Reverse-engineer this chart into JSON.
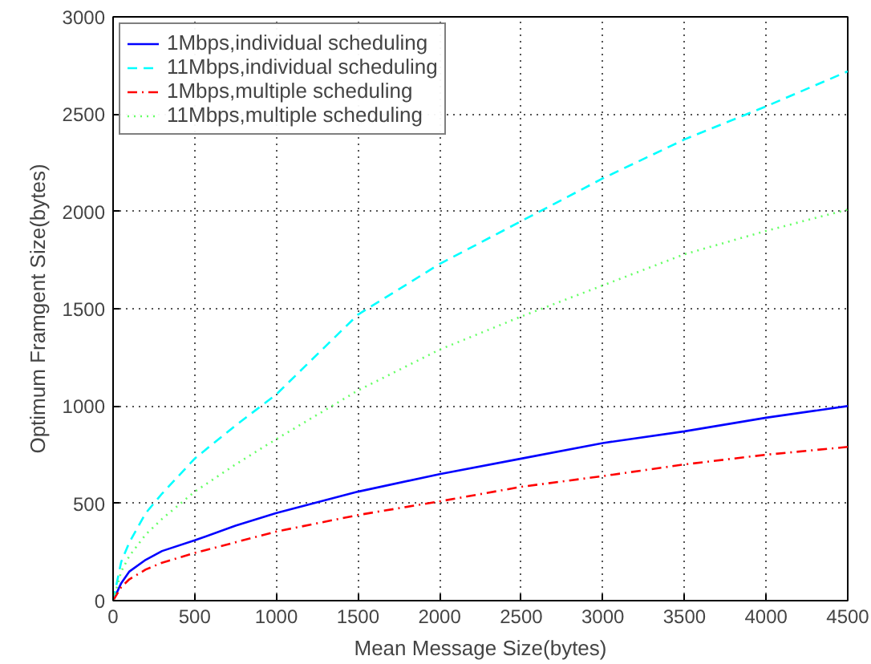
{
  "chart_data": {
    "type": "line",
    "xlabel": "Mean Message Size(bytes)",
    "ylabel": "Optimum Framgent Size(bytes)",
    "x": [
      0,
      50,
      100,
      200,
      300,
      500,
      750,
      1000,
      1500,
      2000,
      2500,
      3000,
      3500,
      4000,
      4500
    ],
    "series": [
      {
        "name": "1Mbps,individual scheduling",
        "color": "#0000ff",
        "line_style": "solid",
        "values": [
          0,
          90,
          150,
          210,
          255,
          310,
          385,
          450,
          560,
          650,
          730,
          810,
          870,
          940,
          1000
        ]
      },
      {
        "name": "11Mbps,individual scheduling",
        "color": "#00ffff",
        "line_style": "dashed",
        "values": [
          0,
          200,
          300,
          450,
          550,
          730,
          900,
          1060,
          1470,
          1730,
          1950,
          2170,
          2370,
          2540,
          2720
        ]
      },
      {
        "name": "1Mbps,multiple scheduling",
        "color": "#ff0000",
        "line_style": "dashdot",
        "values": [
          0,
          70,
          110,
          160,
          195,
          245,
          300,
          355,
          440,
          510,
          585,
          640,
          700,
          750,
          790
        ]
      },
      {
        "name": "11Mbps,multiple scheduling",
        "color": "#66ff66",
        "line_style": "dotted",
        "values": [
          0,
          150,
          230,
          340,
          420,
          560,
          700,
          830,
          1080,
          1290,
          1460,
          1620,
          1780,
          1900,
          2010
        ]
      }
    ],
    "xlim": [
      0,
      4500
    ],
    "ylim": [
      0,
      3000
    ],
    "xticks": [
      0,
      500,
      1000,
      1500,
      2000,
      2500,
      3000,
      3500,
      4000,
      4500
    ],
    "yticks": [
      0,
      500,
      1000,
      1500,
      2000,
      2500,
      3000
    ],
    "grid": true,
    "legend": "top left"
  }
}
